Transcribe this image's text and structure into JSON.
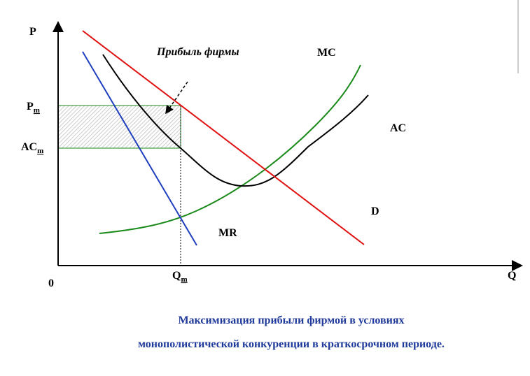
{
  "axes": {
    "y_label": "P",
    "x_label": "Q",
    "origin": "0"
  },
  "levels": {
    "price": {
      "main": "P",
      "sub": "m"
    },
    "average_cost": {
      "main": "AC",
      "sub": "m"
    },
    "quantity": {
      "main": "Q",
      "sub": "m"
    }
  },
  "curves": {
    "mc": "MC",
    "ac": "AC",
    "demand": "D",
    "mr": "MR"
  },
  "annotation": "Прибыль фирмы",
  "caption": [
    "Максимизация прибыли фирмой в условиях",
    "монополистической конкуренции в краткосрочном периоде."
  ]
}
